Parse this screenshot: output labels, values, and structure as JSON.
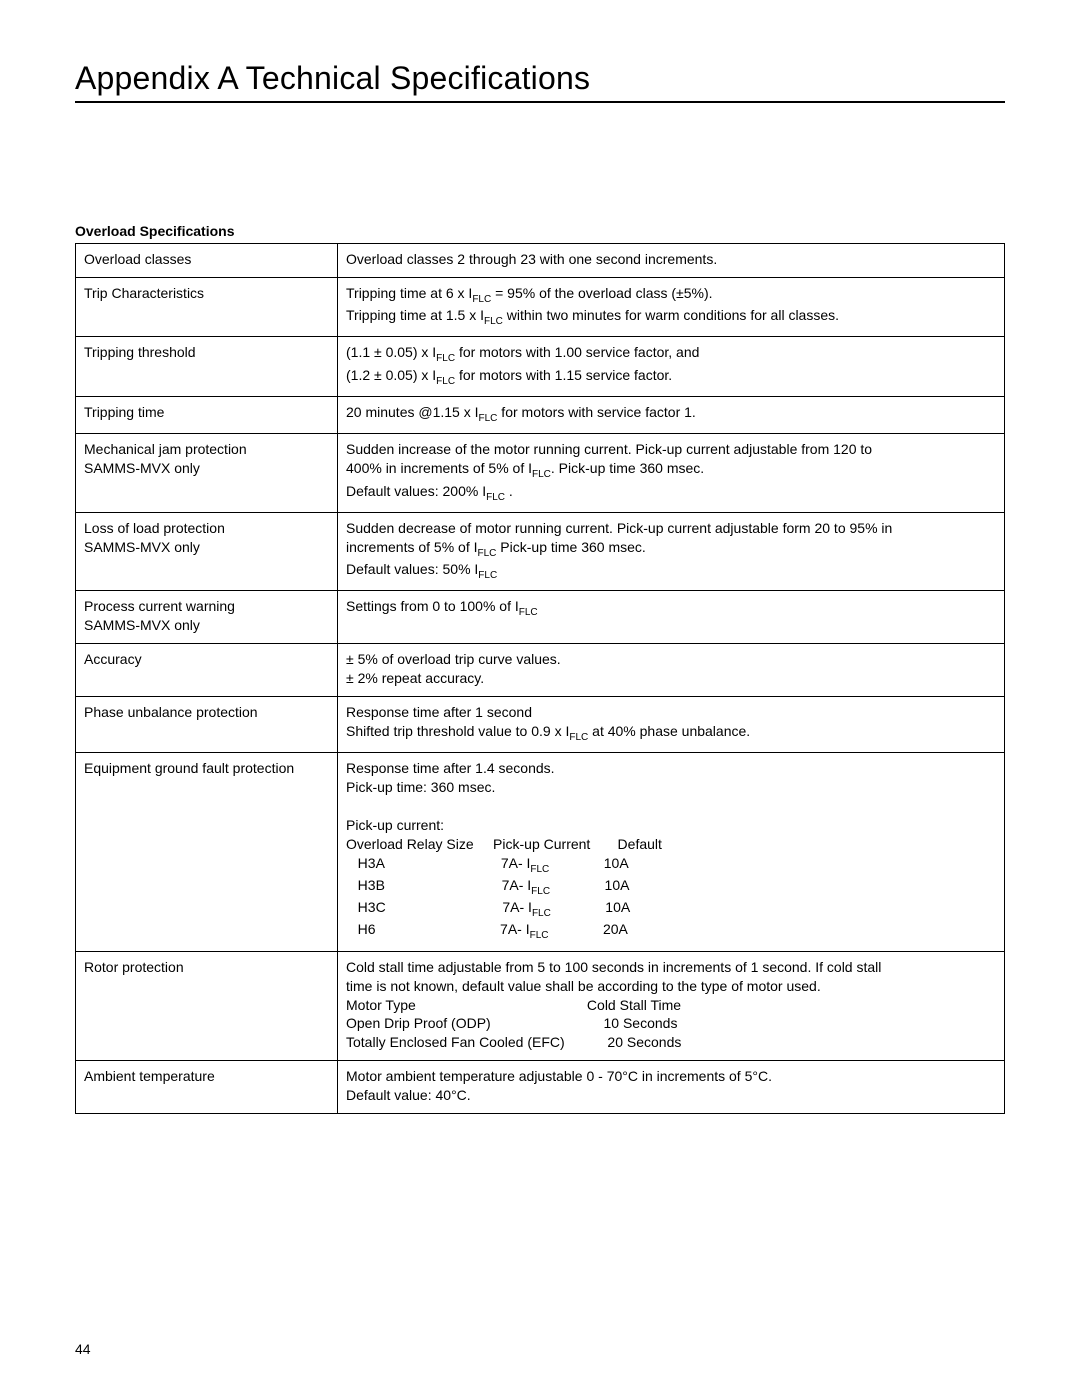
{
  "title": "Appendix A Technical Specifications",
  "sectionHeader": "Overload Specifications",
  "pageNumber": "44",
  "rows": {
    "r1": {
      "label": "Overload classes",
      "value": "Overload classes 2 through 23 with one second increments."
    },
    "r2": {
      "label": "Trip Characteristics",
      "line1a": "Tripping time at 6 x I",
      "line1b": " = 95% of the overload class (±5%).",
      "line2a": "Tripping time at 1.5 x I",
      "line2b": " within two minutes for warm conditions for all classes."
    },
    "r3": {
      "label": "Tripping threshold",
      "line1a": "(1.1 ± 0.05) x I",
      "line1b": " for motors with 1.00 service factor, and",
      "line2a": "(1.2 ± 0.05) x I",
      "line2b": " for motors with 1.15 service factor."
    },
    "r4": {
      "label": "Tripping time",
      "line1a": "20 minutes @1.15 x I",
      "line1b": " for motors with service factor 1."
    },
    "r5": {
      "label1": "Mechanical jam protection",
      "label2": "SAMMS-MVX only",
      "line1": "Sudden increase of the motor running current.  Pick-up current adjustable from 120 to",
      "line2a": "400% in increments of 5% of I",
      "line2b": ". Pick-up time 360 msec.",
      "line3a": "Default values: 200% I",
      "line3b": " ."
    },
    "r6": {
      "label1": "Loss of load protection",
      "label2": "SAMMS-MVX only",
      "line1": "Sudden decrease of motor running current.  Pick-up current adjustable form 20 to 95% in",
      "line2a": "increments of 5% of I",
      "line2b": "  Pick-up time 360 msec.",
      "line3a": "Default values: 50% I",
      "line3b": ""
    },
    "r7": {
      "label1": "Process current warning",
      "label2": "SAMMS-MVX only",
      "line1a": "Settings from 0 to 100% of I",
      "line1b": ""
    },
    "r8": {
      "label": "Accuracy",
      "line1": "± 5% of overload trip curve values.",
      "line2": "± 2% repeat accuracy."
    },
    "r9": {
      "label": "Phase unbalance protection",
      "line1": "Response time after 1 second",
      "line2a": "Shifted trip threshold value to 0.9 x I",
      "line2b": " at 40% phase unbalance."
    },
    "r10": {
      "label": "Equipment ground fault protection",
      "line1": "Response time after 1.4 seconds.",
      "line2": "Pick-up time: 360 msec.",
      "blank": " ",
      "line3": "Pick-up current:",
      "hdr": "Overload Relay Size     Pick-up Current       Default",
      "t1a": "   H3A                              7A- I",
      "t1b": "              10A",
      "t2a": "   H3B                              7A- I",
      "t2b": "              10A",
      "t3a": "   H3C                              7A- I",
      "t3b": "              10A",
      "t4a": "   H6                                7A- I",
      "t4b": "              20A"
    },
    "r11": {
      "label": "Rotor protection",
      "line1": "Cold stall time adjustable from 5 to 100 seconds in increments of 1 second. If cold stall",
      "line2": "time is not known, default value shall be according to the type of motor used.",
      "t1": "Motor Type                                            Cold Stall Time",
      "t2": "Open Drip Proof (ODP)                             10 Seconds",
      "t3": "Totally Enclosed Fan Cooled (EFC)           20 Seconds"
    },
    "r12": {
      "label": "Ambient temperature",
      "line1": "Motor ambient temperature adjustable 0 - 70°C in increments of 5°C.",
      "line2": "Default value: 40°C."
    }
  },
  "sub": "FLC"
}
